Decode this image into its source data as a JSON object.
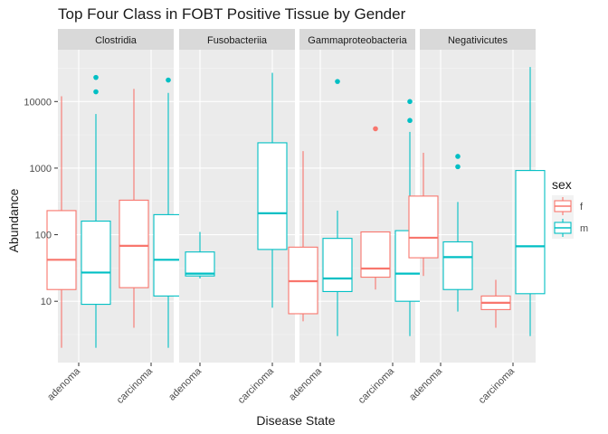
{
  "chart_data": {
    "type": "boxplot",
    "title": "Top Four Class in FOBT Positive Tissue by Gender",
    "xlabel": "Disease State",
    "ylabel": "Abundance",
    "y_scale": "log10",
    "ylim": [
      1.2,
      60000
    ],
    "y_ticks": [
      10,
      100,
      1000,
      10000
    ],
    "y_tick_labels": [
      "10",
      "100",
      "1000",
      "10000"
    ],
    "grid": true,
    "legend": {
      "title": "sex",
      "position": "right",
      "entries": [
        {
          "key": "f",
          "label": "f",
          "color": "#F8766D"
        },
        {
          "key": "m",
          "label": "m",
          "color": "#00BFC4"
        }
      ]
    },
    "categories": [
      "adenoma",
      "carcinoma"
    ],
    "panels": [
      {
        "name": "Clostridia",
        "boxes": [
          {
            "category": "adenoma",
            "sex": "f",
            "low": 2,
            "q1": 15,
            "median": 42,
            "q3": 230,
            "high": 12000,
            "outliers": []
          },
          {
            "category": "adenoma",
            "sex": "m",
            "low": 2,
            "q1": 9,
            "median": 27,
            "q3": 160,
            "high": 6500,
            "outliers": [
              14000,
              23000
            ]
          },
          {
            "category": "carcinoma",
            "sex": "f",
            "low": 4,
            "q1": 16,
            "median": 68,
            "q3": 330,
            "high": 15500,
            "outliers": []
          },
          {
            "category": "carcinoma",
            "sex": "m",
            "low": 2,
            "q1": 12,
            "median": 42,
            "q3": 200,
            "high": 13500,
            "outliers": [
              21000
            ]
          }
        ]
      },
      {
        "name": "Fusobacteriia",
        "boxes": [
          {
            "category": "adenoma",
            "sex": "m",
            "low": 22,
            "q1": 24,
            "median": 26,
            "q3": 55,
            "high": 110,
            "outliers": []
          },
          {
            "category": "carcinoma",
            "sex": "m",
            "low": 8,
            "q1": 60,
            "median": 210,
            "q3": 2400,
            "high": 27000,
            "outliers": []
          }
        ]
      },
      {
        "name": "Gammaproteobacteria",
        "boxes": [
          {
            "category": "adenoma",
            "sex": "f",
            "low": 5,
            "q1": 6.5,
            "median": 20,
            "q3": 65,
            "high": 1800,
            "outliers": []
          },
          {
            "category": "adenoma",
            "sex": "m",
            "low": 3,
            "q1": 14,
            "median": 22,
            "q3": 88,
            "high": 230,
            "outliers": [
              20000
            ]
          },
          {
            "category": "carcinoma",
            "sex": "f",
            "low": 15,
            "q1": 23,
            "median": 31,
            "q3": 110,
            "high": 110,
            "outliers": [
              3900
            ]
          },
          {
            "category": "carcinoma",
            "sex": "m",
            "low": 3,
            "q1": 10,
            "median": 26,
            "q3": 115,
            "high": 3500,
            "outliers": [
              5200,
              10000
            ]
          }
        ]
      },
      {
        "name": "Negativicutes",
        "boxes": [
          {
            "category": "adenoma",
            "sex": "f",
            "low": 24,
            "q1": 45,
            "median": 90,
            "q3": 380,
            "high": 1700,
            "outliers": []
          },
          {
            "category": "adenoma",
            "sex": "m",
            "low": 7,
            "q1": 15,
            "median": 46,
            "q3": 78,
            "high": 310,
            "outliers": [
              1050,
              1500
            ]
          },
          {
            "category": "carcinoma",
            "sex": "f",
            "low": 4,
            "q1": 7.5,
            "median": 9.5,
            "q3": 12,
            "high": 21,
            "outliers": []
          },
          {
            "category": "carcinoma",
            "sex": "m",
            "low": 3,
            "q1": 13,
            "median": 67,
            "q3": 920,
            "high": 33000,
            "outliers": []
          }
        ]
      }
    ]
  }
}
